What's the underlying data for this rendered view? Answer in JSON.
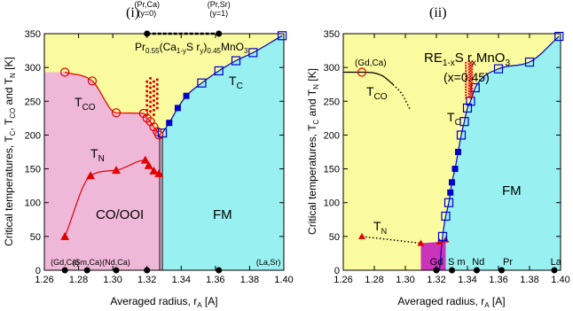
{
  "chart_data": [
    {
      "type": "scatter",
      "panel": "(i)",
      "xlabel": "Averaged radius, r",
      "xlabel_sub": "A",
      "xlabel_unit": " [A]",
      "ylabel": "Critical temperatures, T",
      "ylabel_sub1": "C",
      "ylabel_mid1": ", T",
      "ylabel_sub2": "CO",
      "ylabel_mid2": " and T",
      "ylabel_sub3": "N",
      "ylabel_unit": " [K]",
      "xlim": [
        1.26,
        1.4
      ],
      "ylim": [
        0,
        350
      ],
      "xticks": [
        "1.26",
        "1.28",
        "1.30",
        "1.32",
        "1.34",
        "1.36",
        "1.38",
        "1.40"
      ],
      "yticks": [
        "0",
        "50",
        "100",
        "150",
        "200",
        "250",
        "300",
        "350"
      ],
      "colors": {
        "co_ooi": "#f0b8d8",
        "fm": "#99f0f0",
        "para": "#fafa9e",
        "series": "#e00000",
        "tc": "#0000cc"
      },
      "region_labels": {
        "co_ooi": "CO/OOI",
        "fm": "FM"
      },
      "boundary_x": 1.329,
      "top_annotation": {
        "left_line1": "(Pr,Ca)",
        "left_line2": "(y=0)",
        "right_line1": "(Pr,Sr)",
        "right_line2": "(y=1)",
        "x_left": 1.32,
        "x_right": 1.362
      },
      "formula": {
        "base": "Pr",
        "sub1": "0.55",
        "mid1": "(Ca",
        "sub2": "1-y",
        "mid2": "S r",
        "sub3": "y",
        "mid3": ")",
        "sub4": "0.45",
        "tail": "MnO",
        "sub5": "3"
      },
      "bottom_labels": [
        {
          "text": "(Gd,Ca)",
          "x": 1.272
        },
        {
          "text": "(Sm,Ca)",
          "x": 1.285
        },
        {
          "text": "(Nd,Ca)",
          "x": 1.302
        },
        {
          "text": "(La,Sr)",
          "x": 1.391
        }
      ],
      "bottom_dots": [
        1.272,
        1.285,
        1.302,
        1.32,
        1.362
      ],
      "series": [
        {
          "name": "T_CO",
          "label_main": "T",
          "label_sub": "CO",
          "marker": "open-circle",
          "points": [
            [
              1.272,
              293
            ],
            [
              1.288,
              280
            ],
            [
              1.302,
              233
            ],
            [
              1.318,
              232
            ],
            [
              1.32,
              225
            ],
            [
              1.322,
              220
            ],
            [
              1.324,
              212
            ],
            [
              1.326,
              205
            ],
            [
              1.327,
              200
            ]
          ]
        },
        {
          "name": "T_N",
          "label_main": "T",
          "label_sub": "N",
          "marker": "filled-triangle",
          "points": [
            [
              1.272,
              50
            ],
            [
              1.287,
              140
            ],
            [
              1.302,
              148
            ],
            [
              1.319,
              163
            ],
            [
              1.321,
              155
            ],
            [
              1.324,
              147
            ],
            [
              1.327,
              143
            ]
          ]
        },
        {
          "name": "T_C",
          "label_main": "T",
          "label_sub": "C",
          "marker": "open-square",
          "points": [
            [
              1.329,
              203
            ],
            [
              1.333,
              218
            ],
            [
              1.338,
              240
            ],
            [
              1.343,
              258
            ],
            [
              1.352,
              277
            ],
            [
              1.362,
              295
            ],
            [
              1.372,
              310
            ],
            [
              1.382,
              322
            ],
            [
              1.399,
              347
            ]
          ]
        }
      ]
    },
    {
      "type": "scatter",
      "panel": "(ii)",
      "xlabel": "Averaged radius, r",
      "xlabel_sub": "A",
      "xlabel_unit": " [A]",
      "ylabel": "Critical temperatures, T",
      "ylabel_sub1": "C",
      "ylabel_mid1": " and T",
      "ylabel_sub2": "N",
      "ylabel_unit": " [K]",
      "xlim": [
        1.26,
        1.4
      ],
      "ylim": [
        0,
        350
      ],
      "xticks": [
        "1.26",
        "1.28",
        "1.30",
        "1.32",
        "1.34",
        "1.36",
        "1.38",
        "1.40"
      ],
      "yticks": [
        "0",
        "50",
        "100",
        "150",
        "200",
        "250",
        "300",
        "350"
      ],
      "colors": {
        "fm": "#99f0f0",
        "para": "#fafa9e",
        "magenta": "#cc33bb",
        "series": "#e00000",
        "tc": "#0000cc"
      },
      "region_labels": {
        "fm": "FM"
      },
      "formula": {
        "base": "RE",
        "sub1": "1-x",
        "mid1": "S r",
        "sub2": "x",
        "tail": "MnO",
        "sub3": "3",
        "line2": "(x=0.45)"
      },
      "gdca_label": "(Gd,Ca)",
      "bottom_labels": [
        {
          "text": "Gd",
          "x": 1.32
        },
        {
          "text": "S m",
          "x": 1.333
        },
        {
          "text": "Nd",
          "x": 1.347
        },
        {
          "text": "Pr",
          "x": 1.366
        },
        {
          "text": "La",
          "x": 1.397
        }
      ],
      "bottom_dots": [
        1.32,
        1.33,
        1.346,
        1.362,
        1.396
      ],
      "series": [
        {
          "name": "T_CO",
          "label_main": "T",
          "label_sub": "CO",
          "marker": "open-circle",
          "points": [
            [
              1.272,
              293
            ]
          ]
        },
        {
          "name": "T_N",
          "label_main": "T",
          "label_sub": "N",
          "marker": "filled-triangle",
          "points": [
            [
              1.272,
              50
            ],
            [
              1.31,
              40
            ],
            [
              1.322,
              42
            ],
            [
              1.326,
              45
            ]
          ]
        },
        {
          "name": "T_C",
          "label_main": "T",
          "label_sub": "C",
          "marker": "open-square",
          "points": [
            [
              1.324,
              50
            ],
            [
              1.326,
              80
            ],
            [
              1.328,
              100
            ],
            [
              1.329,
              115
            ],
            [
              1.33,
              130
            ],
            [
              1.332,
              150
            ],
            [
              1.334,
              175
            ],
            [
              1.336,
              200
            ],
            [
              1.338,
              220
            ],
            [
              1.34,
              240
            ],
            [
              1.342,
              250
            ],
            [
              1.345,
              270
            ],
            [
              1.36,
              298
            ],
            [
              1.38,
              308
            ],
            [
              1.399,
              346
            ]
          ]
        }
      ]
    }
  ]
}
